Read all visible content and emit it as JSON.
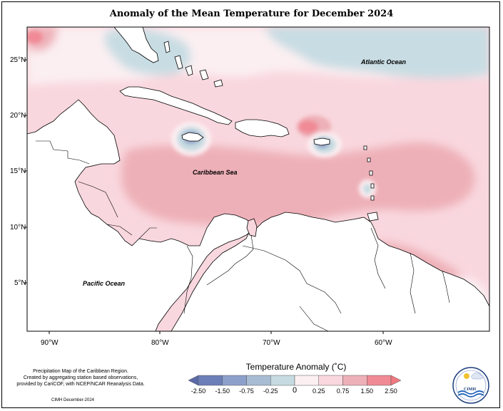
{
  "title": "Anomaly of the Mean Temperature for December 2024",
  "axes": {
    "y_ticks": [
      "25°N",
      "20°N",
      "15°N",
      "10°N",
      "5°N"
    ],
    "x_ticks": [
      "90°W",
      "80°W",
      "70°W",
      "60°W"
    ]
  },
  "labels": {
    "atlantic": "Atlantic Ocean",
    "caribbean": "Caribbean Sea",
    "pacific": "Pacific Ocean"
  },
  "legend": {
    "title": "Temperature Anomaly (˚C)",
    "tick_labels": [
      "-2.50",
      "-1.50",
      "-0.75",
      "-0.25",
      "0",
      "0.25",
      "0.75",
      "1.50",
      "2.50"
    ],
    "colors": [
      "#6c7fb8",
      "#8d9fcb",
      "#a8bcd3",
      "#c6dbe1",
      "#fbeff2",
      "#f9d7de",
      "#eeb0b8",
      "#f08a95"
    ],
    "extend_low_color": "#5a6aa8",
    "extend_high_color": "#f07880"
  },
  "credits": {
    "line1": "Precipitation Map of the Caribbean Region.",
    "line2": "Created by aggregating station based observations,",
    "line3": "provided by CariCOF, with NCEP/NCAR Reanalysis Data.",
    "date_line": "CIMH December-2024",
    "logo_text": "CIMH"
  }
}
